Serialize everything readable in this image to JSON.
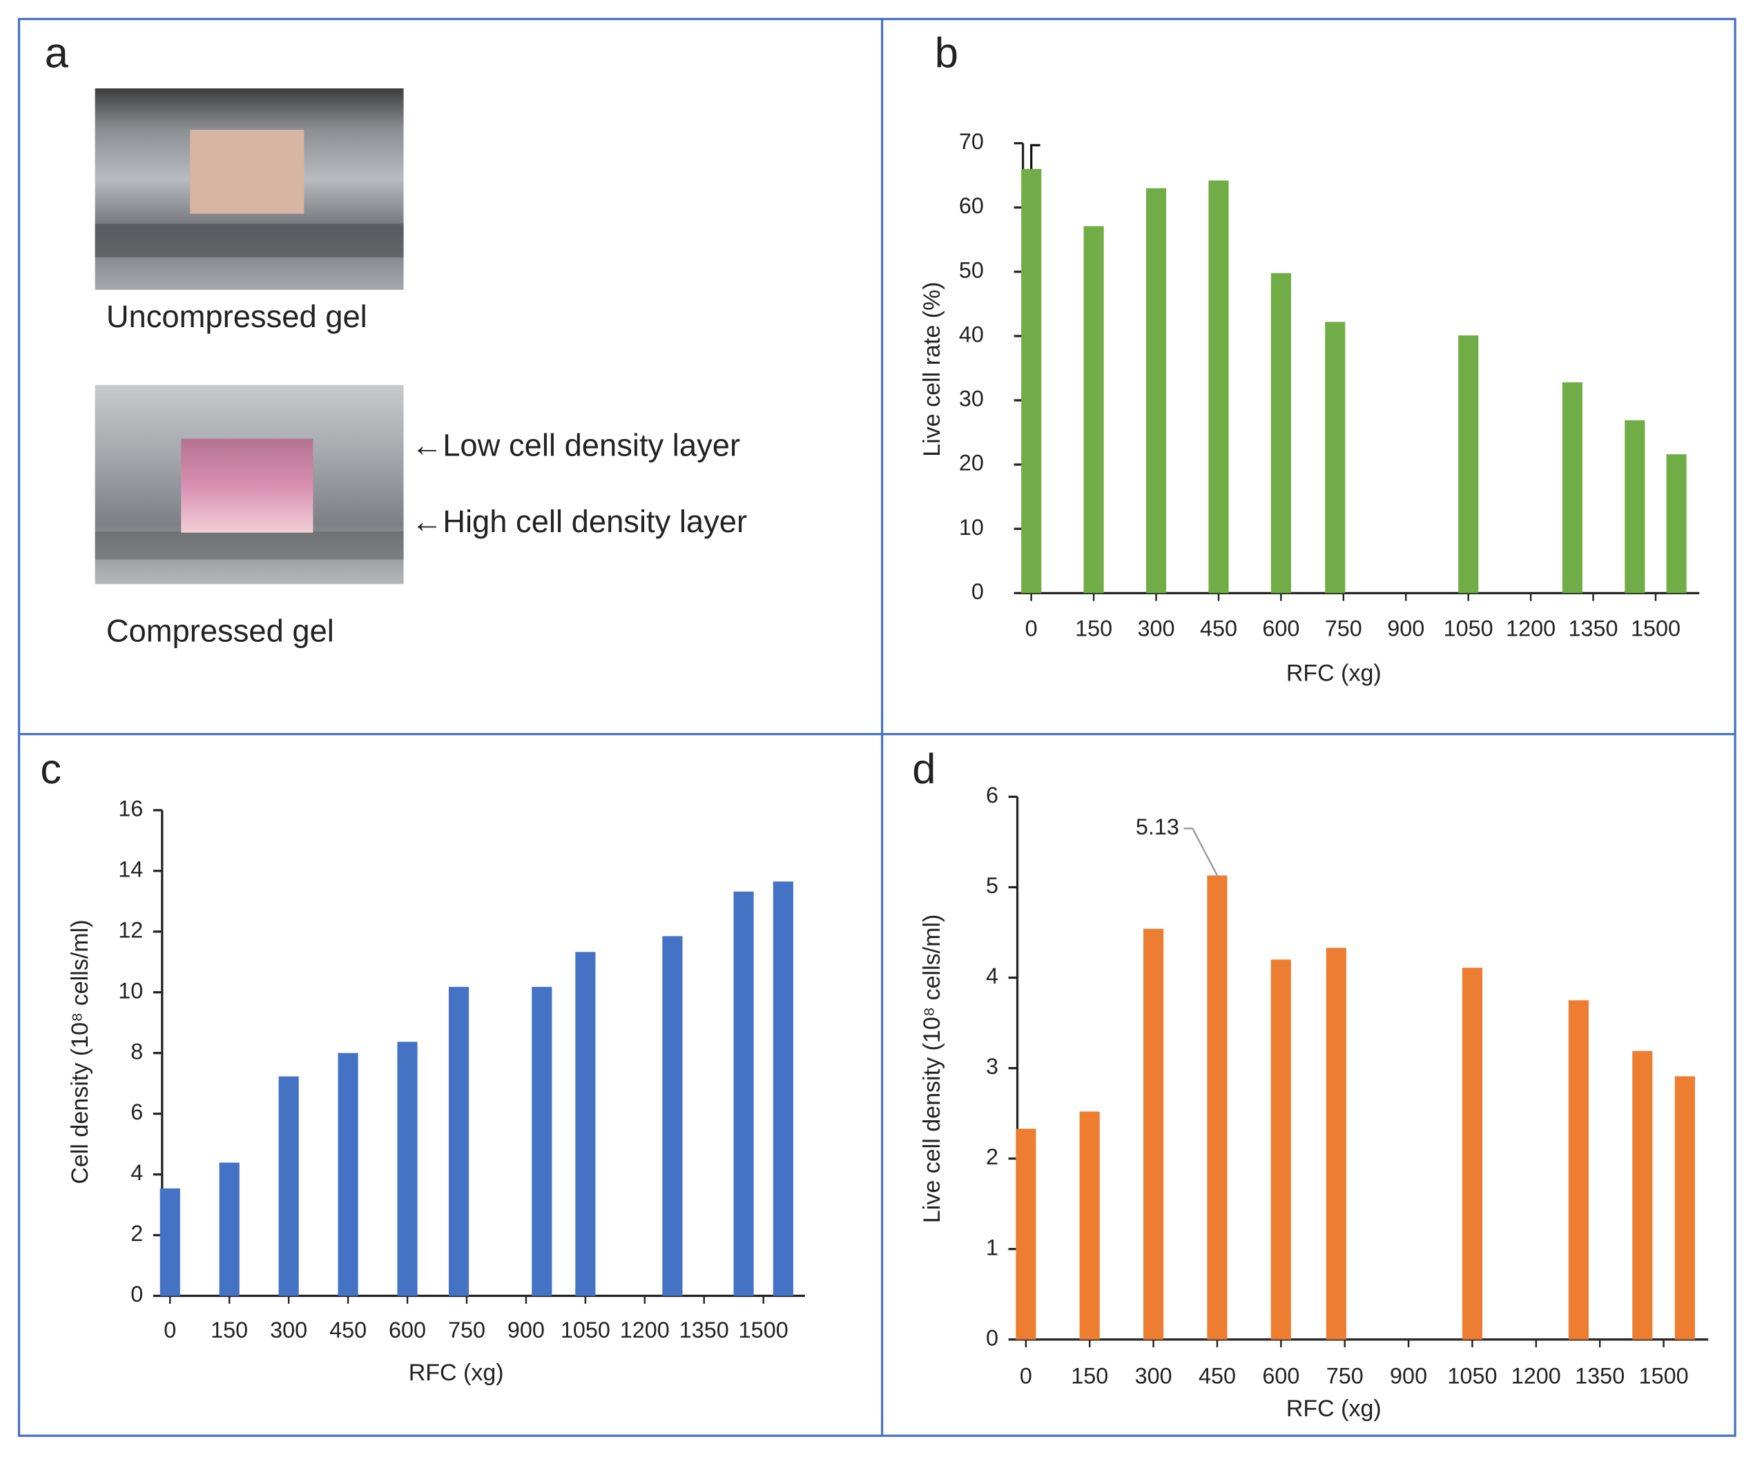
{
  "panel_labels": [
    "a",
    "b",
    "c",
    "d"
  ],
  "panel_a": {
    "top_caption": "Uncompressed gel",
    "bottom_caption": "Compressed gel",
    "arrow_top": "←Low cell density layer",
    "arrow_bottom": "←High cell density layer"
  },
  "chart_data": [
    {
      "type": "bar",
      "x_label": "RFC (xg)",
      "y_label": "Live cell rate (%)",
      "color": "#70ad47",
      "x": [
        0,
        150,
        300,
        450,
        600,
        730,
        1050,
        1300,
        1450,
        1550
      ],
      "values": [
        66,
        57.1,
        63,
        64.2,
        49.8,
        42.2,
        40.1,
        32.8,
        26.9,
        21.6
      ],
      "errors": [
        3.7,
        null,
        null,
        null,
        null,
        null,
        null,
        null,
        null,
        null
      ],
      "xlim": [
        -20,
        1605
      ],
      "xticks": [
        0,
        150,
        300,
        450,
        600,
        750,
        900,
        1050,
        1200,
        1350,
        1500
      ],
      "ylim": [
        0,
        70
      ],
      "yticks": [
        0,
        10,
        20,
        30,
        40,
        50,
        60,
        70
      ]
    },
    {
      "type": "bar",
      "x_label": "RFC (xg)",
      "y_label": "Cell density (10⁸ cells/ml)",
      "color": "#4472c4",
      "x": [
        0,
        150,
        300,
        450,
        600,
        730,
        940,
        1050,
        1270,
        1450,
        1550
      ],
      "values": [
        3.54,
        4.39,
        7.23,
        8.0,
        8.37,
        10.18,
        10.18,
        11.33,
        11.85,
        13.32,
        13.65
      ],
      "xlim": [
        -20,
        1605
      ],
      "xticks": [
        0,
        150,
        300,
        450,
        600,
        750,
        900,
        1050,
        1200,
        1350,
        1500
      ],
      "ylim": [
        0,
        16
      ],
      "yticks": [
        0,
        2,
        4,
        6,
        8,
        10,
        12,
        14,
        16
      ]
    },
    {
      "type": "bar",
      "x_label": "RFC (xg)",
      "y_label": "Live cell density (10⁸ cells/ml)",
      "color": "#ed7d31",
      "x": [
        0,
        150,
        300,
        450,
        600,
        730,
        1050,
        1300,
        1450,
        1550
      ],
      "values": [
        2.33,
        2.52,
        4.54,
        5.13,
        4.2,
        4.33,
        4.11,
        3.75,
        3.19,
        2.91
      ],
      "value_labels": [
        null,
        null,
        null,
        "5.13",
        null,
        null,
        null,
        null,
        null,
        null
      ],
      "xlim": [
        -20,
        1605
      ],
      "xticks": [
        0,
        150,
        300,
        450,
        600,
        750,
        900,
        1050,
        1200,
        1350,
        1500
      ],
      "ylim": [
        0,
        6
      ],
      "yticks": [
        0,
        1,
        2,
        3,
        4,
        5,
        6
      ]
    }
  ]
}
